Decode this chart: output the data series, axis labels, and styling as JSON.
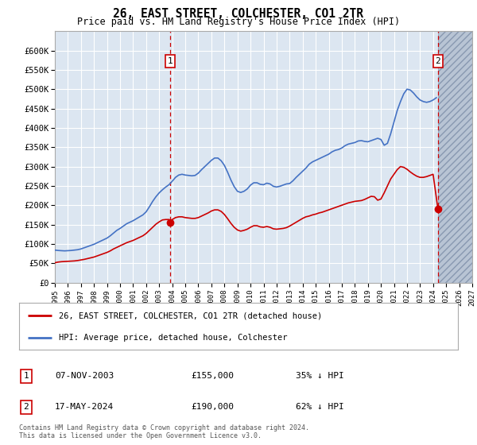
{
  "title": "26, EAST STREET, COLCHESTER, CO1 2TR",
  "subtitle": "Price paid vs. HM Land Registry's House Price Index (HPI)",
  "background_color": "#ffffff",
  "plot_bg_color": "#dce6f1",
  "grid_color": "#ffffff",
  "hpi_color": "#4472c4",
  "price_color": "#cc0000",
  "hatch_color": "#c0c8d8",
  "ylim": [
    0,
    650000
  ],
  "yticks": [
    0,
    50000,
    100000,
    150000,
    200000,
    250000,
    300000,
    350000,
    400000,
    450000,
    500000,
    550000,
    600000
  ],
  "ytick_labels": [
    "£0",
    "£50K",
    "£100K",
    "£150K",
    "£200K",
    "£250K",
    "£300K",
    "£350K",
    "£400K",
    "£450K",
    "£500K",
    "£550K",
    "£600K"
  ],
  "legend_price_label": "26, EAST STREET, COLCHESTER, CO1 2TR (detached house)",
  "legend_hpi_label": "HPI: Average price, detached house, Colchester",
  "annotation1_date": "07-NOV-2003",
  "annotation1_price": 155000,
  "annotation1_price_str": "£155,000",
  "annotation1_text": "35% ↓ HPI",
  "annotation2_date": "17-MAY-2024",
  "annotation2_price": 190000,
  "annotation2_price_str": "£190,000",
  "annotation2_text": "62% ↓ HPI",
  "footnote": "Contains HM Land Registry data © Crown copyright and database right 2024.\nThis data is licensed under the Open Government Licence v3.0.",
  "transaction1_x": 2003.85,
  "transaction1_y": 155000,
  "transaction2_x": 2024.37,
  "transaction2_y": 190000,
  "xmin": 1995,
  "xmax": 2027,
  "xticks": [
    1995,
    1996,
    1997,
    1998,
    1999,
    2000,
    2001,
    2002,
    2003,
    2004,
    2005,
    2006,
    2007,
    2008,
    2009,
    2010,
    2011,
    2012,
    2013,
    2014,
    2015,
    2016,
    2017,
    2018,
    2019,
    2020,
    2021,
    2022,
    2023,
    2024,
    2025,
    2026,
    2027
  ],
  "hpi_data_x": [
    1995.0,
    1995.25,
    1995.5,
    1995.75,
    1996.0,
    1996.25,
    1996.5,
    1996.75,
    1997.0,
    1997.25,
    1997.5,
    1997.75,
    1998.0,
    1998.25,
    1998.5,
    1998.75,
    1999.0,
    1999.25,
    1999.5,
    1999.75,
    2000.0,
    2000.25,
    2000.5,
    2000.75,
    2001.0,
    2001.25,
    2001.5,
    2001.75,
    2002.0,
    2002.25,
    2002.5,
    2002.75,
    2003.0,
    2003.25,
    2003.5,
    2003.75,
    2004.0,
    2004.25,
    2004.5,
    2004.75,
    2005.0,
    2005.25,
    2005.5,
    2005.75,
    2006.0,
    2006.25,
    2006.5,
    2006.75,
    2007.0,
    2007.25,
    2007.5,
    2007.75,
    2008.0,
    2008.25,
    2008.5,
    2008.75,
    2009.0,
    2009.25,
    2009.5,
    2009.75,
    2010.0,
    2010.25,
    2010.5,
    2010.75,
    2011.0,
    2011.25,
    2011.5,
    2011.75,
    2012.0,
    2012.25,
    2012.5,
    2012.75,
    2013.0,
    2013.25,
    2013.5,
    2013.75,
    2014.0,
    2014.25,
    2014.5,
    2014.75,
    2015.0,
    2015.25,
    2015.5,
    2015.75,
    2016.0,
    2016.25,
    2016.5,
    2016.75,
    2017.0,
    2017.25,
    2017.5,
    2017.75,
    2018.0,
    2018.25,
    2018.5,
    2018.75,
    2019.0,
    2019.25,
    2019.5,
    2019.75,
    2020.0,
    2020.25,
    2020.5,
    2020.75,
    2021.0,
    2021.25,
    2021.5,
    2021.75,
    2022.0,
    2022.25,
    2022.5,
    2022.75,
    2023.0,
    2023.25,
    2023.5,
    2023.75,
    2024.0,
    2024.25
  ],
  "hpi_data_y": [
    84000,
    83000,
    82500,
    82000,
    82500,
    83000,
    84000,
    85000,
    87000,
    90000,
    93000,
    96000,
    99000,
    103000,
    107000,
    111000,
    115000,
    121000,
    128000,
    135000,
    140000,
    146000,
    152000,
    156000,
    160000,
    165000,
    170000,
    175000,
    183000,
    196000,
    210000,
    222000,
    232000,
    240000,
    247000,
    253000,
    262000,
    272000,
    278000,
    280000,
    278000,
    277000,
    276000,
    277000,
    283000,
    292000,
    300000,
    308000,
    316000,
    322000,
    322000,
    315000,
    303000,
    285000,
    265000,
    248000,
    236000,
    233000,
    236000,
    242000,
    252000,
    258000,
    258000,
    254000,
    253000,
    257000,
    255000,
    249000,
    247000,
    249000,
    252000,
    255000,
    256000,
    263000,
    272000,
    280000,
    288000,
    296000,
    306000,
    312000,
    316000,
    320000,
    324000,
    328000,
    332000,
    338000,
    342000,
    344000,
    348000,
    354000,
    358000,
    360000,
    362000,
    366000,
    367000,
    365000,
    364000,
    367000,
    370000,
    373000,
    370000,
    355000,
    360000,
    385000,
    415000,
    445000,
    468000,
    488000,
    500000,
    498000,
    490000,
    480000,
    472000,
    468000,
    466000,
    468000,
    472000,
    478000
  ],
  "price_data_x": [
    1995.0,
    1995.1,
    1995.25,
    1995.5,
    1995.75,
    1996.0,
    1996.25,
    1996.5,
    1996.75,
    1997.0,
    1997.25,
    1997.5,
    1997.75,
    1998.0,
    1998.25,
    1998.5,
    1998.75,
    1999.0,
    1999.25,
    1999.5,
    1999.75,
    2000.0,
    2000.25,
    2000.5,
    2000.75,
    2001.0,
    2001.25,
    2001.5,
    2001.75,
    2002.0,
    2002.25,
    2002.5,
    2002.75,
    2003.0,
    2003.25,
    2003.5,
    2003.75,
    2003.85,
    2004.0,
    2004.25,
    2004.5,
    2004.75,
    2005.0,
    2005.25,
    2005.5,
    2005.75,
    2006.0,
    2006.25,
    2006.5,
    2006.75,
    2007.0,
    2007.25,
    2007.5,
    2007.75,
    2008.0,
    2008.25,
    2008.5,
    2008.75,
    2009.0,
    2009.25,
    2009.5,
    2009.75,
    2010.0,
    2010.25,
    2010.5,
    2010.75,
    2011.0,
    2011.25,
    2011.5,
    2011.75,
    2012.0,
    2012.25,
    2012.5,
    2012.75,
    2013.0,
    2013.25,
    2013.5,
    2013.75,
    2014.0,
    2014.25,
    2014.5,
    2014.75,
    2015.0,
    2015.25,
    2015.5,
    2015.75,
    2016.0,
    2016.25,
    2016.5,
    2016.75,
    2017.0,
    2017.25,
    2017.5,
    2017.75,
    2018.0,
    2018.25,
    2018.5,
    2018.75,
    2019.0,
    2019.25,
    2019.5,
    2019.75,
    2020.0,
    2020.25,
    2020.5,
    2020.75,
    2021.0,
    2021.25,
    2021.5,
    2021.75,
    2022.0,
    2022.25,
    2022.5,
    2022.75,
    2023.0,
    2023.25,
    2023.5,
    2023.75,
    2024.0,
    2024.37
  ],
  "price_data_y": [
    51000,
    52000,
    53000,
    54000,
    54500,
    55000,
    55500,
    56000,
    57000,
    58500,
    60000,
    62000,
    64000,
    66000,
    69000,
    72000,
    75000,
    78000,
    82000,
    87000,
    91000,
    95000,
    99000,
    103000,
    106000,
    109000,
    113000,
    117000,
    121000,
    127000,
    135000,
    143000,
    151000,
    157000,
    162000,
    163000,
    163000,
    155000,
    163000,
    168000,
    170000,
    170000,
    168000,
    167000,
    166000,
    166000,
    168000,
    172000,
    176000,
    180000,
    185000,
    188000,
    188000,
    184000,
    176000,
    165000,
    153000,
    143000,
    136000,
    133000,
    135000,
    138000,
    143000,
    147000,
    147000,
    144000,
    143000,
    145000,
    143000,
    139000,
    138000,
    139000,
    140000,
    142000,
    146000,
    151000,
    156000,
    161000,
    166000,
    170000,
    172000,
    175000,
    177000,
    180000,
    182000,
    185000,
    188000,
    191000,
    194000,
    197000,
    200000,
    203000,
    206000,
    208000,
    210000,
    211000,
    212000,
    215000,
    219000,
    223000,
    222000,
    213000,
    216000,
    232000,
    250000,
    268000,
    280000,
    292000,
    300000,
    298000,
    293000,
    286000,
    280000,
    275000,
    272000,
    272000,
    274000,
    277000,
    280000,
    190000
  ]
}
